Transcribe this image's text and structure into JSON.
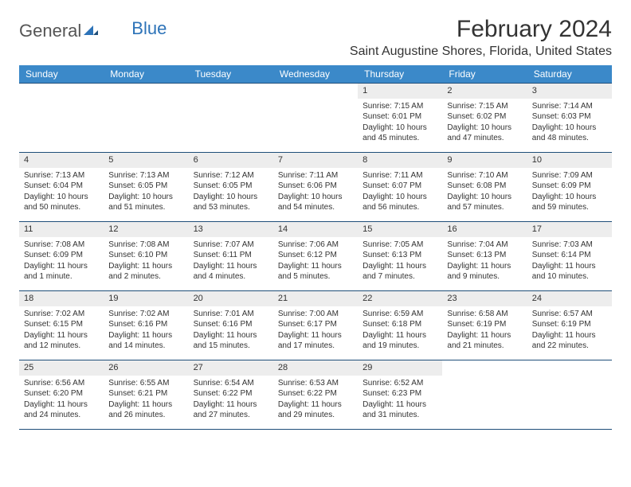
{
  "logo": {
    "text_a": "General",
    "text_b": "Blue"
  },
  "header": {
    "month_title": "February 2024",
    "location": "Saint Augustine Shores, Florida, United States"
  },
  "day_names": [
    "Sunday",
    "Monday",
    "Tuesday",
    "Wednesday",
    "Thursday",
    "Friday",
    "Saturday"
  ],
  "colors": {
    "header_bg": "#3b89c9",
    "header_fg": "#ffffff",
    "rule": "#1f4e79",
    "daynum_bg": "#ededed",
    "text": "#333333",
    "logo_gray": "#555555",
    "logo_blue": "#2d73b8",
    "page_bg": "#ffffff"
  },
  "weeks": [
    [
      {
        "empty": true
      },
      {
        "empty": true
      },
      {
        "empty": true
      },
      {
        "empty": true
      },
      {
        "n": "1",
        "sunrise": "7:15 AM",
        "sunset": "6:01 PM",
        "daylight": "10 hours and 45 minutes."
      },
      {
        "n": "2",
        "sunrise": "7:15 AM",
        "sunset": "6:02 PM",
        "daylight": "10 hours and 47 minutes."
      },
      {
        "n": "3",
        "sunrise": "7:14 AM",
        "sunset": "6:03 PM",
        "daylight": "10 hours and 48 minutes."
      }
    ],
    [
      {
        "n": "4",
        "sunrise": "7:13 AM",
        "sunset": "6:04 PM",
        "daylight": "10 hours and 50 minutes."
      },
      {
        "n": "5",
        "sunrise": "7:13 AM",
        "sunset": "6:05 PM",
        "daylight": "10 hours and 51 minutes."
      },
      {
        "n": "6",
        "sunrise": "7:12 AM",
        "sunset": "6:05 PM",
        "daylight": "10 hours and 53 minutes."
      },
      {
        "n": "7",
        "sunrise": "7:11 AM",
        "sunset": "6:06 PM",
        "daylight": "10 hours and 54 minutes."
      },
      {
        "n": "8",
        "sunrise": "7:11 AM",
        "sunset": "6:07 PM",
        "daylight": "10 hours and 56 minutes."
      },
      {
        "n": "9",
        "sunrise": "7:10 AM",
        "sunset": "6:08 PM",
        "daylight": "10 hours and 57 minutes."
      },
      {
        "n": "10",
        "sunrise": "7:09 AM",
        "sunset": "6:09 PM",
        "daylight": "10 hours and 59 minutes."
      }
    ],
    [
      {
        "n": "11",
        "sunrise": "7:08 AM",
        "sunset": "6:09 PM",
        "daylight": "11 hours and 1 minute."
      },
      {
        "n": "12",
        "sunrise": "7:08 AM",
        "sunset": "6:10 PM",
        "daylight": "11 hours and 2 minutes."
      },
      {
        "n": "13",
        "sunrise": "7:07 AM",
        "sunset": "6:11 PM",
        "daylight": "11 hours and 4 minutes."
      },
      {
        "n": "14",
        "sunrise": "7:06 AM",
        "sunset": "6:12 PM",
        "daylight": "11 hours and 5 minutes."
      },
      {
        "n": "15",
        "sunrise": "7:05 AM",
        "sunset": "6:13 PM",
        "daylight": "11 hours and 7 minutes."
      },
      {
        "n": "16",
        "sunrise": "7:04 AM",
        "sunset": "6:13 PM",
        "daylight": "11 hours and 9 minutes."
      },
      {
        "n": "17",
        "sunrise": "7:03 AM",
        "sunset": "6:14 PM",
        "daylight": "11 hours and 10 minutes."
      }
    ],
    [
      {
        "n": "18",
        "sunrise": "7:02 AM",
        "sunset": "6:15 PM",
        "daylight": "11 hours and 12 minutes."
      },
      {
        "n": "19",
        "sunrise": "7:02 AM",
        "sunset": "6:16 PM",
        "daylight": "11 hours and 14 minutes."
      },
      {
        "n": "20",
        "sunrise": "7:01 AM",
        "sunset": "6:16 PM",
        "daylight": "11 hours and 15 minutes."
      },
      {
        "n": "21",
        "sunrise": "7:00 AM",
        "sunset": "6:17 PM",
        "daylight": "11 hours and 17 minutes."
      },
      {
        "n": "22",
        "sunrise": "6:59 AM",
        "sunset": "6:18 PM",
        "daylight": "11 hours and 19 minutes."
      },
      {
        "n": "23",
        "sunrise": "6:58 AM",
        "sunset": "6:19 PM",
        "daylight": "11 hours and 21 minutes."
      },
      {
        "n": "24",
        "sunrise": "6:57 AM",
        "sunset": "6:19 PM",
        "daylight": "11 hours and 22 minutes."
      }
    ],
    [
      {
        "n": "25",
        "sunrise": "6:56 AM",
        "sunset": "6:20 PM",
        "daylight": "11 hours and 24 minutes."
      },
      {
        "n": "26",
        "sunrise": "6:55 AM",
        "sunset": "6:21 PM",
        "daylight": "11 hours and 26 minutes."
      },
      {
        "n": "27",
        "sunrise": "6:54 AM",
        "sunset": "6:22 PM",
        "daylight": "11 hours and 27 minutes."
      },
      {
        "n": "28",
        "sunrise": "6:53 AM",
        "sunset": "6:22 PM",
        "daylight": "11 hours and 29 minutes."
      },
      {
        "n": "29",
        "sunrise": "6:52 AM",
        "sunset": "6:23 PM",
        "daylight": "11 hours and 31 minutes."
      },
      {
        "empty": true
      },
      {
        "empty": true
      }
    ]
  ],
  "labels": {
    "sunrise": "Sunrise: ",
    "sunset": "Sunset: ",
    "daylight": "Daylight: "
  }
}
